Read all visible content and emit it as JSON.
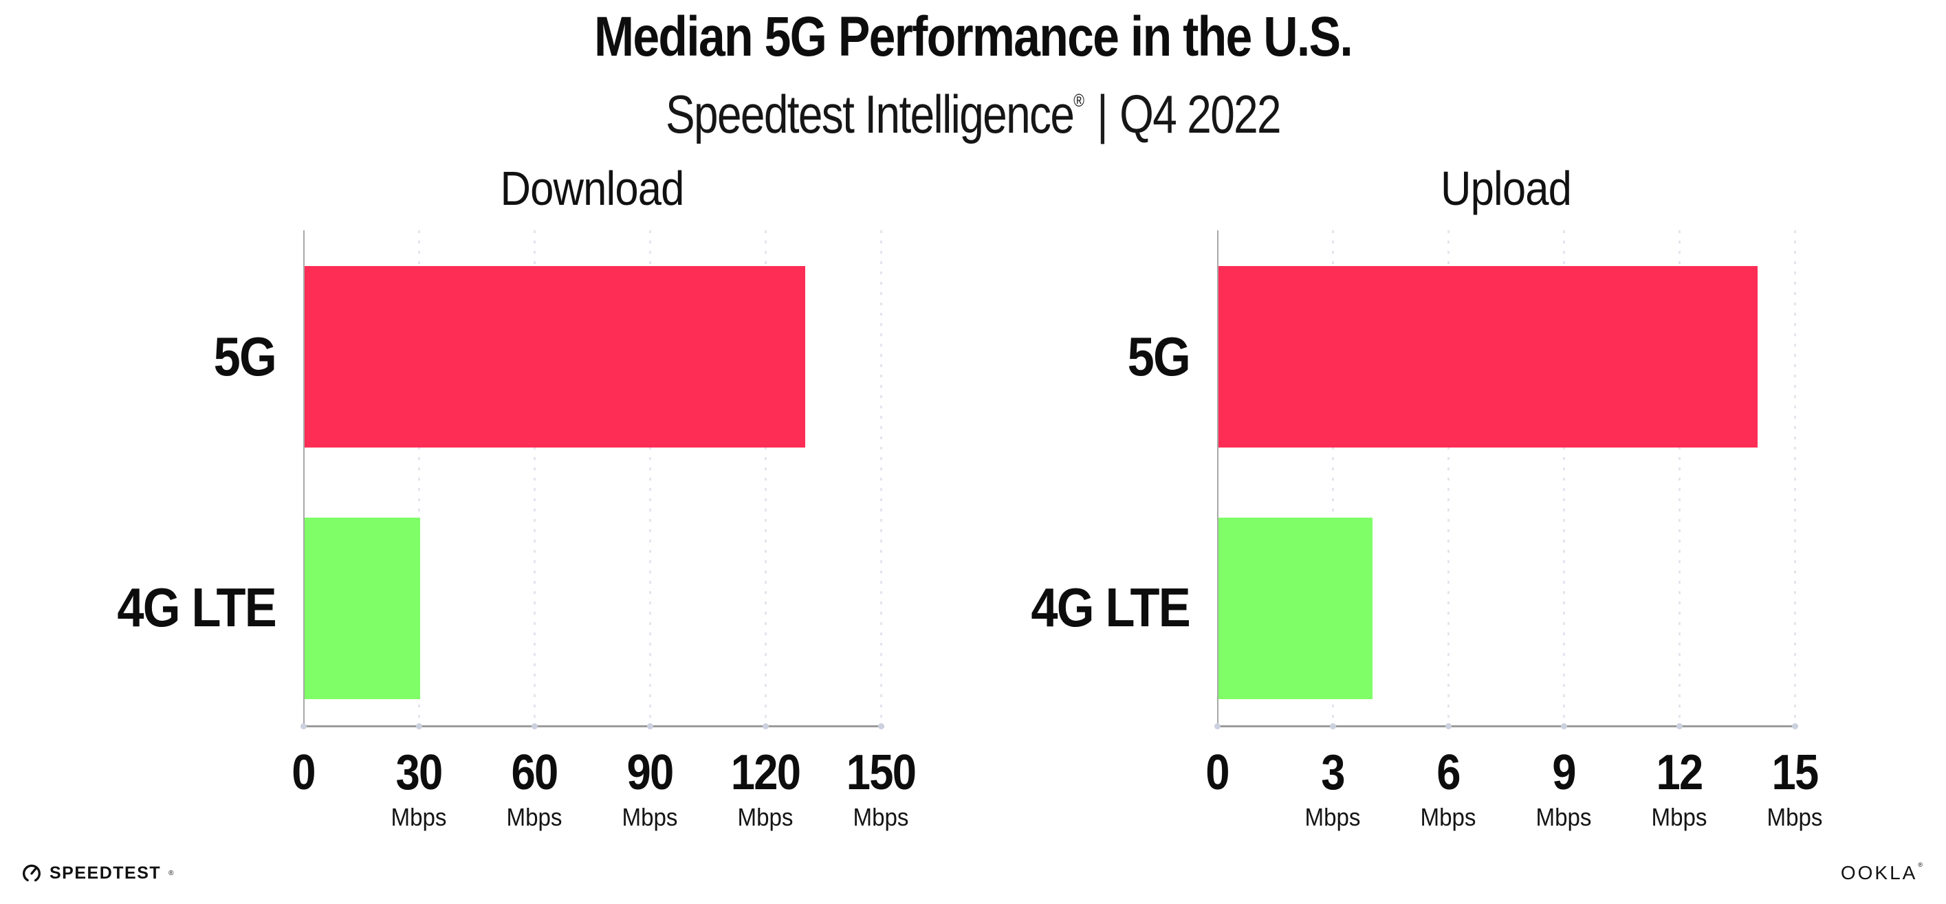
{
  "header": {
    "title": "Median 5G Performance in the U.S.",
    "subtitle_brand": "Speedtest Intelligence",
    "subtitle_reg": "®",
    "subtitle_sep": "|",
    "subtitle_period": "Q4 2022"
  },
  "footer": {
    "speedtest_logo_text": "SPEEDTEST",
    "speedtest_reg": "®",
    "ookla_logo_text": "OOKLA",
    "ookla_reg": "®"
  },
  "colors": {
    "bar_5g": "#FD2D55",
    "bar_4g_lte": "#7FFE67",
    "axis_line": "#9B9B9B",
    "spine": "#A8A8A8",
    "gridline": "#E4E4EE",
    "tick_dot": "#CCD1DF",
    "text": "#0D0D0D"
  },
  "chart_data": [
    {
      "type": "bar",
      "orientation": "horizontal",
      "title": "Download",
      "categories": [
        "5G",
        "4G LTE"
      ],
      "values": [
        130,
        30
      ],
      "unit": "Mbps",
      "xlim": [
        0,
        150
      ],
      "xticks": [
        0,
        30,
        60,
        90,
        120,
        150
      ],
      "bar_colors": [
        "#FD2D55",
        "#7FFE67"
      ],
      "grid": "dotted-vertical",
      "legend": "none"
    },
    {
      "type": "bar",
      "orientation": "horizontal",
      "title": "Upload",
      "categories": [
        "5G",
        "4G LTE"
      ],
      "values": [
        14,
        4
      ],
      "unit": "Mbps",
      "xlim": [
        0,
        15
      ],
      "xticks": [
        0,
        3,
        6,
        9,
        12,
        15
      ],
      "bar_colors": [
        "#FD2D55",
        "#7FFE67"
      ],
      "grid": "dotted-vertical",
      "legend": "none"
    }
  ]
}
